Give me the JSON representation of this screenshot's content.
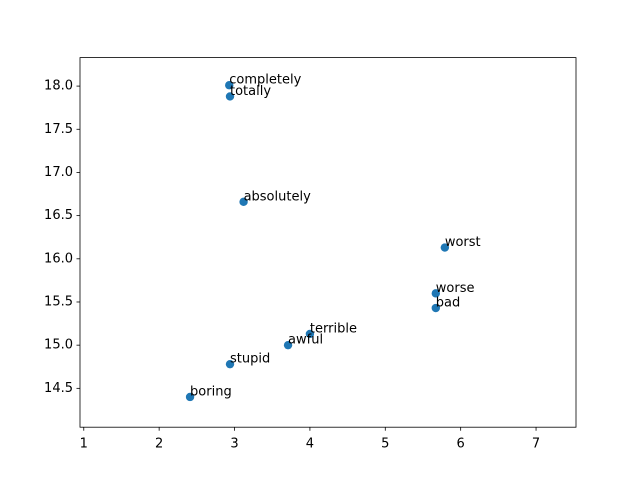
{
  "chart_data": {
    "type": "scatter",
    "labels": [
      "completely",
      "totally",
      "absolutely",
      "worst",
      "worse",
      "bad",
      "terrible",
      "awful",
      "stupid",
      "boring"
    ],
    "x": [
      2.93,
      2.94,
      3.12,
      5.79,
      5.67,
      5.67,
      4.0,
      3.71,
      2.94,
      2.41
    ],
    "values": [
      18.01,
      17.88,
      16.66,
      16.13,
      15.6,
      15.43,
      15.13,
      15.0,
      14.78,
      14.4
    ],
    "color": "#1f77b4",
    "xlim": [
      0.95,
      7.53
    ],
    "ylim": [
      14.05,
      18.33
    ],
    "xticks": [
      1,
      2,
      3,
      4,
      5,
      6,
      7
    ],
    "yticks": [
      {
        "value": 14.5,
        "label": "14.5"
      },
      {
        "value": 15,
        "label": "15.0"
      },
      {
        "value": 15.5,
        "label": "15.5"
      },
      {
        "value": 16,
        "label": "16.0"
      },
      {
        "value": 16.5,
        "label": "16.5"
      },
      {
        "value": 17,
        "label": "17.0"
      },
      {
        "value": 17.5,
        "label": "17.5"
      },
      {
        "value": 18,
        "label": "18.0"
      }
    ],
    "grid": false
  }
}
